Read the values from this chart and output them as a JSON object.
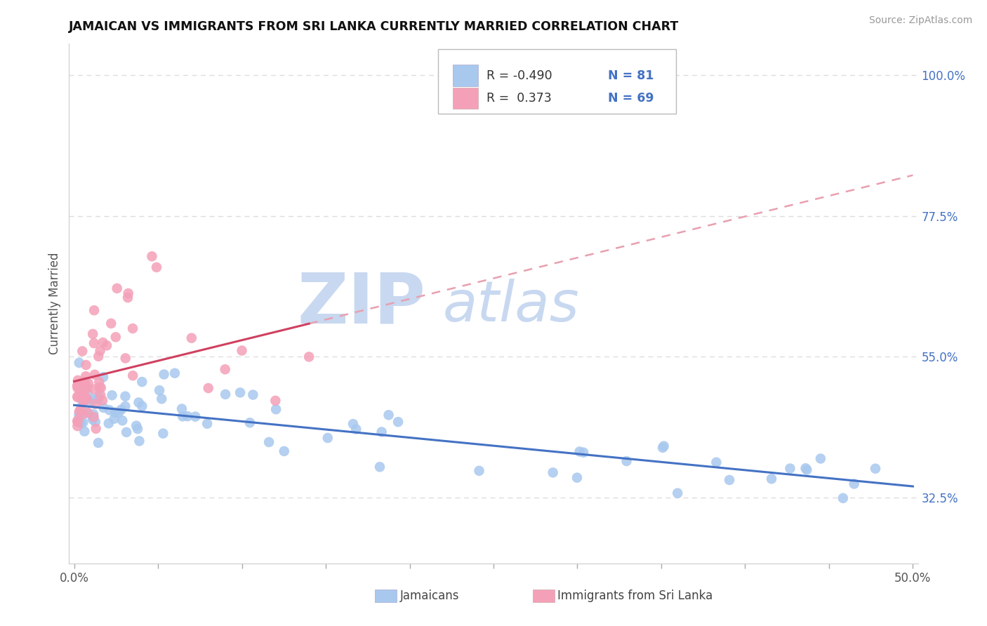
{
  "title": "JAMAICAN VS IMMIGRANTS FROM SRI LANKA CURRENTLY MARRIED CORRELATION CHART",
  "source_text": "Source: ZipAtlas.com",
  "xlabel_jamaicans": "Jamaicans",
  "xlabel_sri_lanka": "Immigrants from Sri Lanka",
  "ylabel": "Currently Married",
  "xlim": [
    0.0,
    0.5
  ],
  "ylim": [
    0.22,
    1.05
  ],
  "right_yticks": [
    1.0,
    0.775,
    0.55,
    0.325
  ],
  "right_yticklabels": [
    "100.0%",
    "77.5%",
    "55.0%",
    "32.5%"
  ],
  "blue_color": "#A8C8EE",
  "pink_color": "#F4A0B8",
  "blue_line_color": "#4472C4",
  "pink_line_color": "#D04060",
  "pink_dash_color": "#E8A0B0",
  "watermark_zip": "ZIP",
  "watermark_atlas": "atlas",
  "watermark_color": "#C8D8F0",
  "legend_r_blue": "-0.490",
  "legend_n_blue": "81",
  "legend_r_pink": "0.373",
  "legend_n_pink": "69",
  "legend_value_color": "#4472C4",
  "legend_label_color": "#333333",
  "grid_color": "#DDDDDD",
  "spine_color": "#CCCCCC"
}
